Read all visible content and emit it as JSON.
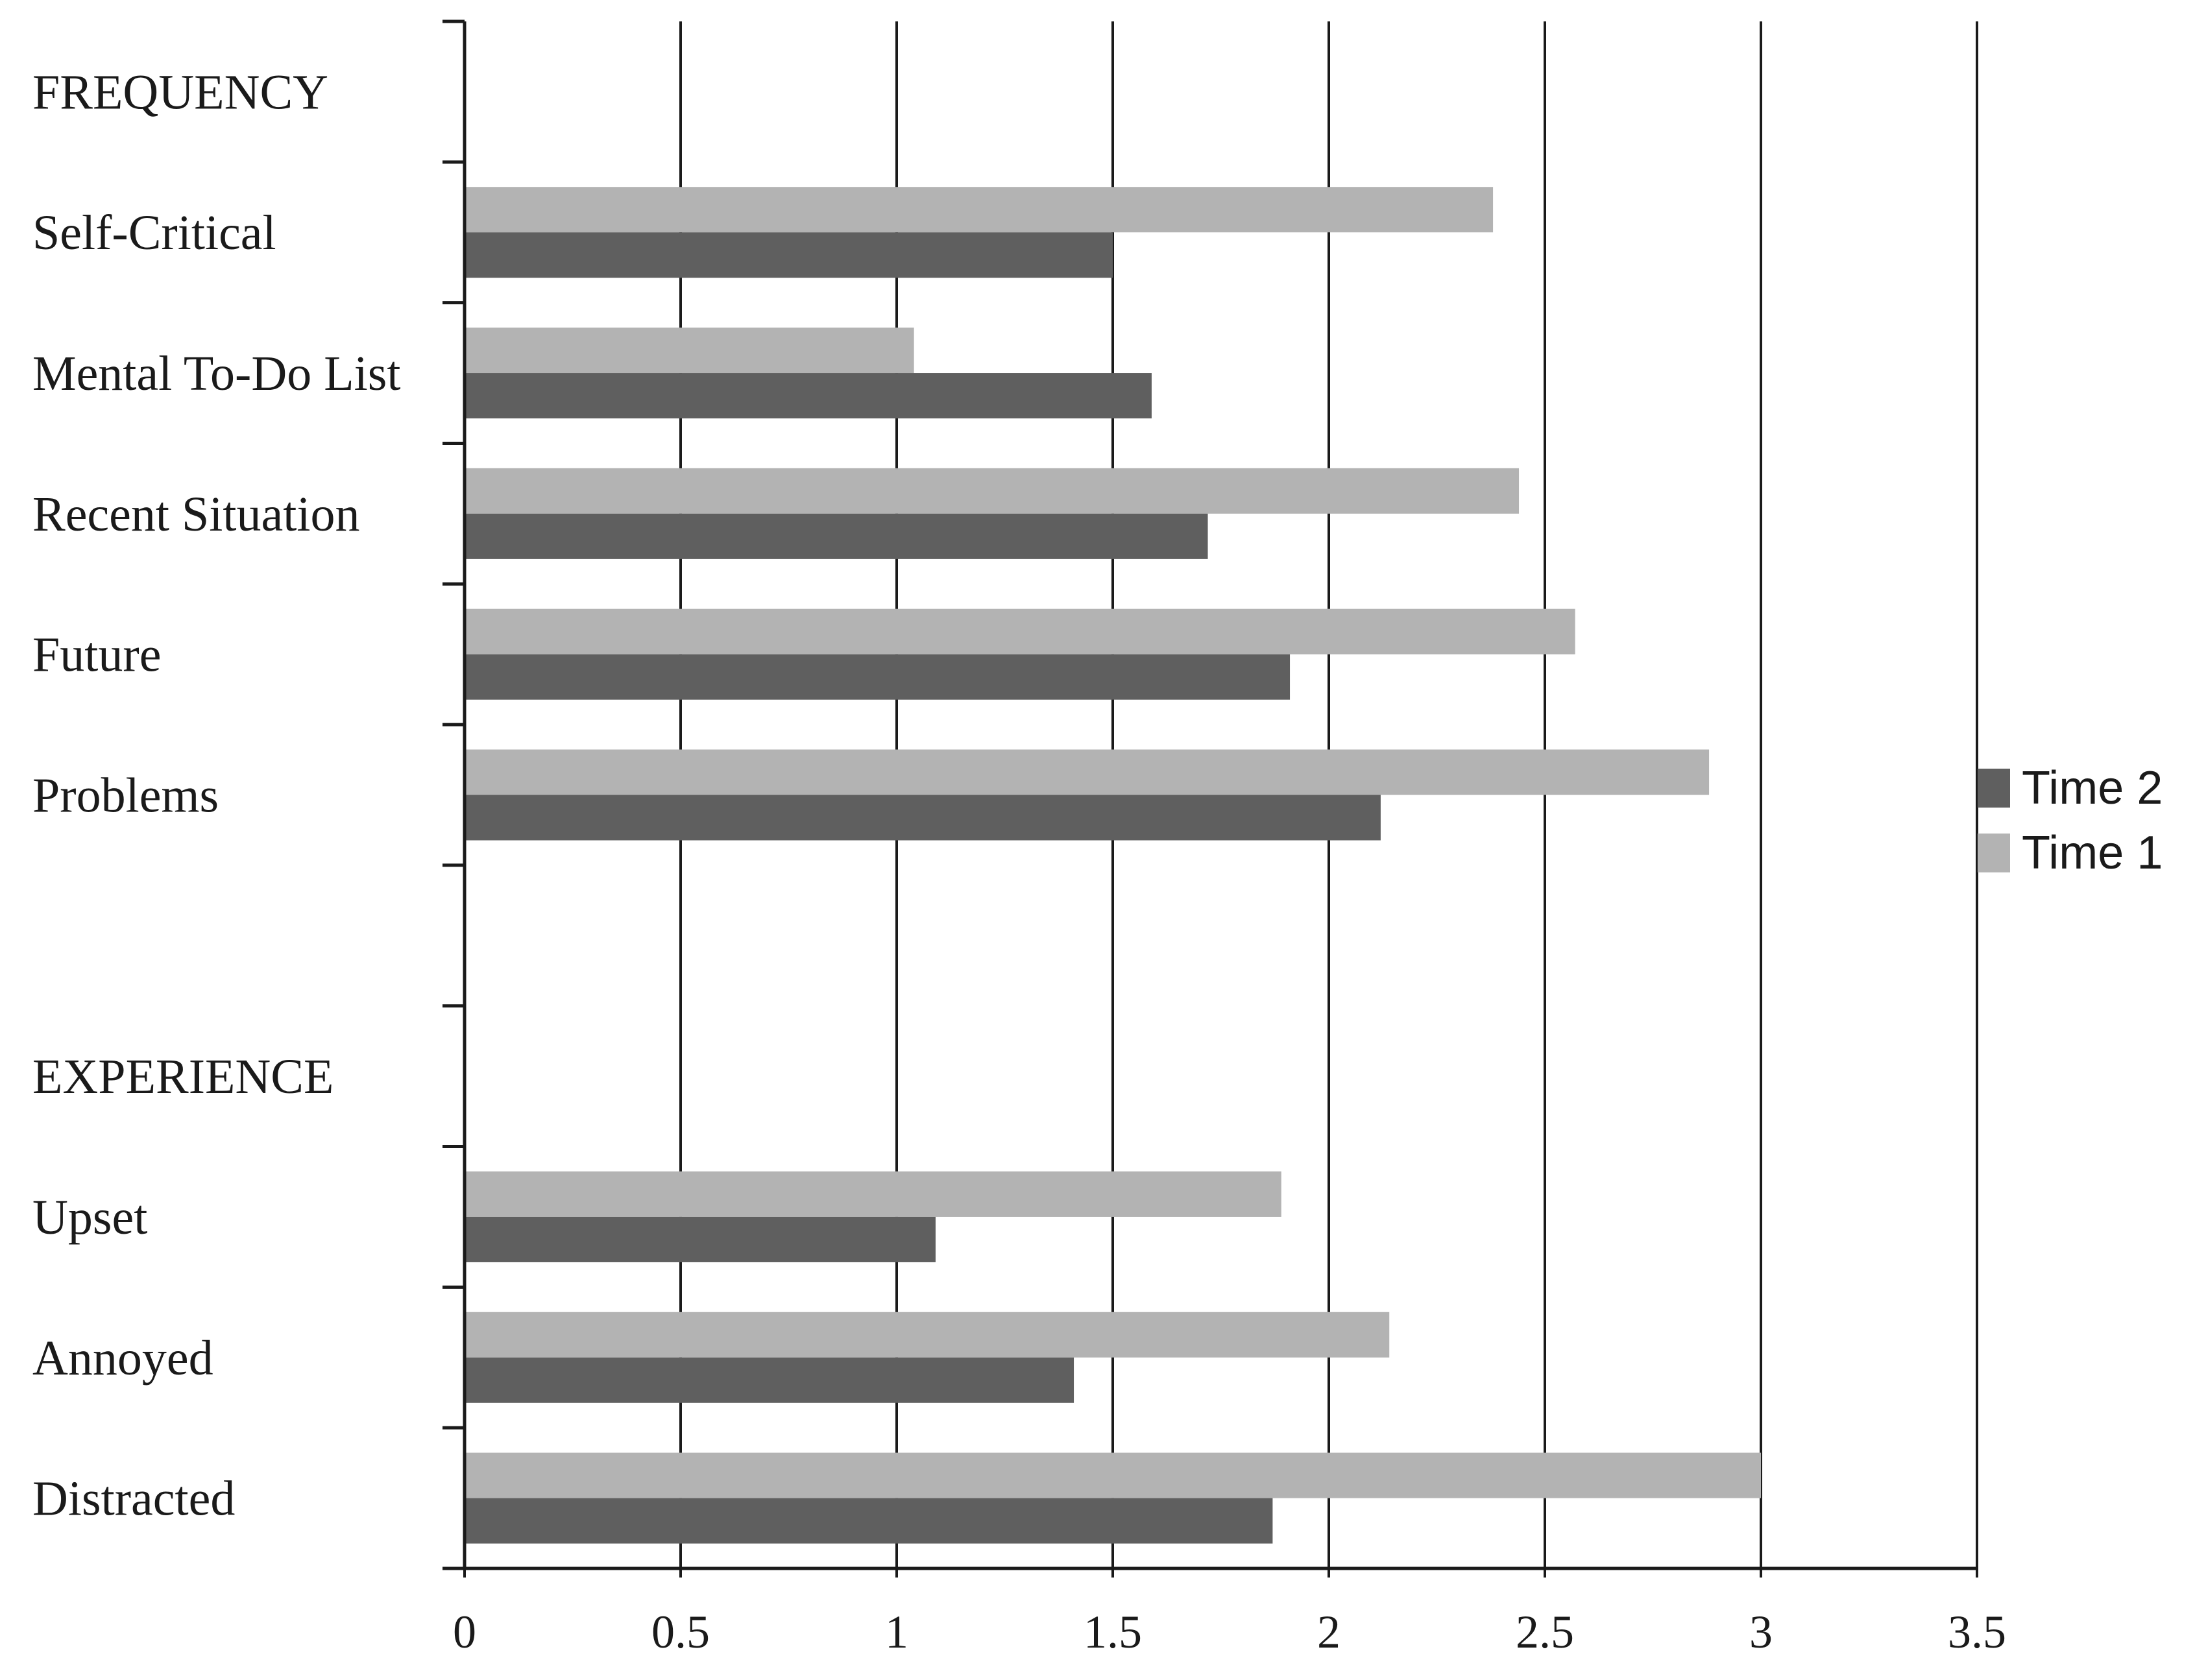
{
  "chart_data": {
    "type": "bar",
    "orientation": "horizontal",
    "title": "",
    "xlabel": "",
    "ylabel": "",
    "xlim": [
      0,
      3.5
    ],
    "x_ticks": [
      "0",
      "0.5",
      "1",
      "1.5",
      "2",
      "2.5",
      "3",
      "3.5"
    ],
    "grid": "vertical",
    "legend_position": "right",
    "categories": [
      "FREQUENCY",
      "Self-Critical",
      "Mental To-Do List",
      "Recent Situation",
      "Future",
      "Problems",
      "",
      "EXPERIENCE",
      "Upset",
      "Annoyed",
      "Distracted"
    ],
    "series": [
      {
        "name": "Time 1",
        "color": "#b3b3b3",
        "values": [
          null,
          2.38,
          1.04,
          2.44,
          2.57,
          2.88,
          null,
          null,
          1.89,
          2.14,
          3.0
        ]
      },
      {
        "name": "Time 2",
        "color": "#5f5f5f",
        "values": [
          null,
          1.5,
          1.59,
          1.72,
          1.91,
          2.12,
          null,
          null,
          1.09,
          1.41,
          1.87
        ]
      }
    ],
    "legend": [
      {
        "name": "Time 2",
        "color": "#5f5f5f"
      },
      {
        "name": "Time 1",
        "color": "#b3b3b3"
      }
    ]
  }
}
